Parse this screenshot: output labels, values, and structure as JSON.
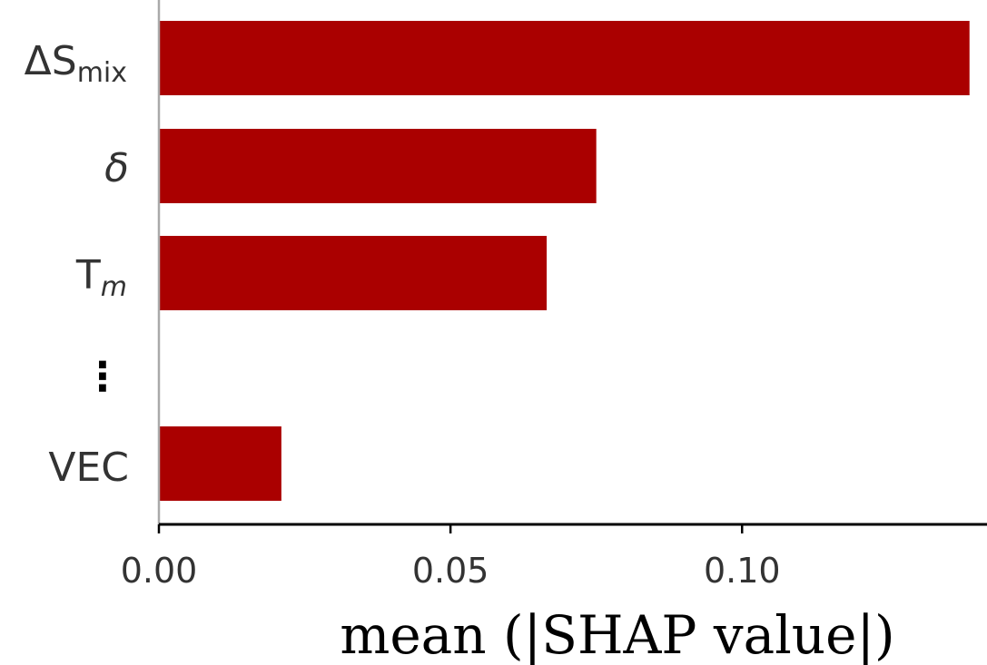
{
  "chart_data": {
    "type": "bar",
    "orientation": "horizontal",
    "categories": [
      "ΔS_mix",
      "δ",
      "T_m",
      "⋮",
      "VEC"
    ],
    "values": [
      0.139,
      0.075,
      0.0665,
      null,
      0.021
    ],
    "bar_color": "#aa0000",
    "xlabel": "mean (|SHAP value|)",
    "ylabel": "",
    "xlim": [
      0,
      0.142
    ],
    "xticks": [
      0.0,
      0.05,
      0.1
    ],
    "xtick_labels": [
      "0.00",
      "0.05",
      "0.10"
    ],
    "grid": false
  },
  "labels": {
    "dsmix_main": "ΔS",
    "dsmix_sub": "mix",
    "delta": "δ",
    "tm_main": "T",
    "tm_sub": "m",
    "ellipsis": "⋮",
    "vec": "VEC"
  }
}
